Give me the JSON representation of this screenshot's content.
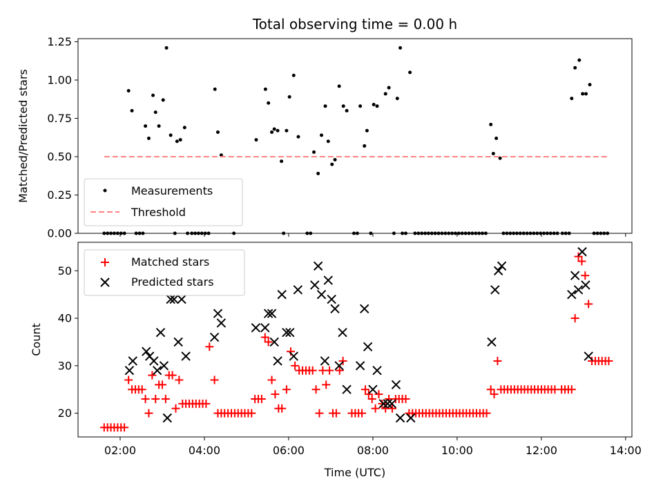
{
  "chart_data": [
    {
      "type": "scatter",
      "title": "Total observing time = 0.00 h",
      "ylabel": "Matched/Predicted stars",
      "xlim": [
        1.0,
        14.15
      ],
      "ylim": [
        0,
        1.27
      ],
      "xticks": [
        2,
        4,
        6,
        8,
        10,
        12,
        14
      ],
      "yticks": [
        0.0,
        0.25,
        0.5,
        0.75,
        1.0,
        1.25
      ],
      "ytick_labels": [
        "0.00",
        "0.25",
        "0.50",
        "0.75",
        "1.00",
        "1.25"
      ],
      "legend": {
        "placement": "lower-left",
        "entries": [
          "Measurements",
          "Threshold"
        ]
      },
      "series": [
        {
          "name": "Measurements",
          "color": "#000000",
          "marker": "dot",
          "x": [
            2.2,
            2.28,
            2.6,
            2.68,
            2.78,
            2.84,
            2.92,
            3.02,
            3.1,
            3.2,
            3.35,
            3.43,
            3.53,
            4.25,
            4.32,
            4.4,
            5.23,
            5.45,
            5.52,
            5.6,
            5.66,
            5.74,
            5.83,
            5.95,
            6.02,
            6.12,
            6.23,
            6.6,
            6.7,
            6.78,
            6.87,
            6.94,
            7.03,
            7.1,
            7.2,
            7.3,
            7.38,
            7.7,
            7.8,
            7.86,
            8.02,
            8.1,
            8.3,
            8.38,
            8.58,
            8.65,
            8.88,
            10.8,
            10.86,
            10.93,
            11.02,
            12.72,
            12.8,
            12.9,
            12.98,
            13.06,
            13.15
          ],
          "y": [
            0.93,
            0.8,
            0.7,
            0.62,
            0.9,
            0.79,
            0.7,
            0.87,
            1.21,
            0.64,
            0.6,
            0.61,
            0.69,
            0.94,
            0.66,
            0.51,
            0.61,
            0.94,
            0.85,
            0.66,
            0.68,
            0.67,
            0.47,
            0.67,
            0.89,
            1.03,
            0.63,
            0.53,
            0.39,
            0.64,
            0.83,
            0.6,
            0.45,
            0.48,
            0.96,
            0.83,
            0.8,
            0.83,
            0.57,
            0.67,
            0.84,
            0.83,
            0.91,
            0.95,
            0.88,
            1.21,
            1.05,
            0.71,
            0.52,
            0.62,
            0.49,
            0.88,
            1.08,
            1.13,
            0.91,
            0.91,
            0.97
          ]
        },
        {
          "name": "Measurements (zero)",
          "color": "#000000",
          "marker": "dot",
          "x": [
            1.62,
            1.7,
            1.78,
            1.86,
            1.94,
            2.02,
            2.1,
            2.38,
            2.46,
            2.54,
            3.3,
            3.6,
            3.7,
            3.78,
            3.86,
            3.94,
            4.02,
            4.1,
            4.7,
            5.88,
            6.44,
            6.52,
            7.55,
            7.63,
            7.95,
            8.5,
            8.7,
            8.78,
            9.0,
            9.08,
            9.16,
            9.24,
            9.32,
            9.4,
            9.48,
            9.56,
            9.64,
            9.72,
            9.8,
            9.88,
            9.96,
            10.04,
            10.12,
            10.2,
            10.28,
            10.36,
            10.44,
            10.52,
            10.6,
            10.68,
            11.1,
            11.18,
            11.26,
            11.34,
            11.42,
            11.5,
            11.58,
            11.66,
            11.74,
            11.82,
            11.9,
            11.98,
            12.06,
            12.14,
            12.22,
            12.3,
            12.38,
            12.5,
            12.58,
            12.66,
            13.25,
            13.33,
            13.41,
            13.49,
            13.57
          ],
          "y": [
            0,
            0,
            0,
            0,
            0,
            0,
            0,
            0,
            0,
            0,
            0,
            0,
            0,
            0,
            0,
            0,
            0,
            0,
            0,
            0,
            0,
            0,
            0,
            0,
            0,
            0,
            0,
            0,
            0,
            0,
            0,
            0,
            0,
            0,
            0,
            0,
            0,
            0,
            0,
            0,
            0,
            0,
            0,
            0,
            0,
            0,
            0,
            0,
            0,
            0,
            0,
            0,
            0,
            0,
            0,
            0,
            0,
            0,
            0,
            0,
            0,
            0,
            0,
            0,
            0,
            0,
            0,
            0,
            0,
            0,
            0,
            0,
            0,
            0,
            0
          ]
        },
        {
          "name": "Threshold",
          "color": "#ff8080",
          "marker": "dashed-line",
          "x": [
            1.62,
            13.57
          ],
          "y": [
            0.5,
            0.5
          ]
        }
      ]
    },
    {
      "type": "scatter",
      "xlabel": "Time (UTC)",
      "ylabel": "Count",
      "xlim": [
        1.0,
        14.15
      ],
      "ylim": [
        15,
        56
      ],
      "xticks": [
        2,
        4,
        6,
        8,
        10,
        12,
        14
      ],
      "xtick_labels": [
        "02:00",
        "04:00",
        "06:00",
        "08:00",
        "10:00",
        "12:00",
        "14:00"
      ],
      "yticks": [
        20,
        30,
        40,
        50
      ],
      "ytick_labels": [
        "20",
        "30",
        "40",
        "50"
      ],
      "legend": {
        "placement": "top-left",
        "entries": [
          "Matched stars",
          "Predicted stars"
        ]
      },
      "series": [
        {
          "name": "Matched stars",
          "color": "#ff0000",
          "marker": "plus",
          "x": [
            1.62,
            1.7,
            1.78,
            1.86,
            1.94,
            2.02,
            2.1,
            2.2,
            2.28,
            2.36,
            2.44,
            2.52,
            2.6,
            2.68,
            2.76,
            2.84,
            2.92,
            3.0,
            3.08,
            3.16,
            3.24,
            3.32,
            3.4,
            3.48,
            3.56,
            3.64,
            3.72,
            3.8,
            3.88,
            3.96,
            4.04,
            4.12,
            4.24,
            4.32,
            4.4,
            4.48,
            4.56,
            4.64,
            4.72,
            4.8,
            4.88,
            4.96,
            5.04,
            5.12,
            5.2,
            5.28,
            5.36,
            5.44,
            5.52,
            5.6,
            5.68,
            5.76,
            5.84,
            5.95,
            6.05,
            6.15,
            6.25,
            6.33,
            6.41,
            6.49,
            6.57,
            6.65,
            6.73,
            6.81,
            6.89,
            6.97,
            7.05,
            7.13,
            7.21,
            7.29,
            7.5,
            7.58,
            7.66,
            7.74,
            7.82,
            7.9,
            7.98,
            8.06,
            8.14,
            8.22,
            8.3,
            8.38,
            8.46,
            8.54,
            8.62,
            8.7,
            8.78,
            8.86,
            8.94,
            9.02,
            9.1,
            9.18,
            9.26,
            9.34,
            9.42,
            9.5,
            9.58,
            9.66,
            9.74,
            9.82,
            9.9,
            9.98,
            10.06,
            10.14,
            10.22,
            10.3,
            10.38,
            10.46,
            10.54,
            10.62,
            10.7,
            10.8,
            10.88,
            10.96,
            11.04,
            11.12,
            11.2,
            11.28,
            11.36,
            11.44,
            11.52,
            11.6,
            11.68,
            11.76,
            11.84,
            11.92,
            12.0,
            12.08,
            12.16,
            12.24,
            12.32,
            12.48,
            12.56,
            12.64,
            12.72,
            12.8,
            12.88,
            12.96,
            13.04,
            13.12,
            13.2,
            13.28,
            13.36,
            13.44,
            13.52,
            13.6
          ],
          "y": [
            17,
            17,
            17,
            17,
            17,
            17,
            17,
            27,
            25,
            25,
            25,
            25,
            23,
            20,
            28,
            23,
            26,
            26,
            23,
            28,
            28,
            21,
            27,
            22,
            22,
            22,
            22,
            22,
            22,
            22,
            22,
            34,
            27,
            20,
            20,
            20,
            20,
            20,
            20,
            20,
            20,
            20,
            20,
            20,
            23,
            23,
            23,
            36,
            35,
            27,
            24,
            21,
            21,
            25,
            33,
            30,
            29,
            29,
            29,
            29,
            29,
            25,
            20,
            29,
            26,
            29,
            20,
            20,
            29,
            31,
            20,
            20,
            20,
            20,
            25,
            24,
            23,
            21,
            24,
            22,
            21,
            23,
            21,
            23,
            23,
            23,
            23,
            20,
            20,
            20,
            20,
            20,
            20,
            20,
            20,
            20,
            20,
            20,
            20,
            20,
            20,
            20,
            20,
            20,
            20,
            20,
            20,
            20,
            20,
            20,
            20,
            25,
            24,
            31,
            25,
            25,
            25,
            25,
            25,
            25,
            25,
            25,
            25,
            25,
            25,
            25,
            25,
            25,
            25,
            25,
            25,
            25,
            25,
            25,
            25,
            40,
            53,
            52,
            49,
            43,
            31,
            31,
            31,
            31,
            31,
            31
          ]
        },
        {
          "name": "Predicted stars",
          "color": "#000000",
          "marker": "cross",
          "x": [
            2.22,
            2.3,
            2.62,
            2.7,
            2.8,
            2.88,
            2.96,
            3.04,
            3.12,
            3.2,
            3.28,
            3.38,
            3.46,
            3.56,
            4.24,
            4.32,
            4.4,
            5.22,
            5.44,
            5.52,
            5.6,
            5.66,
            5.74,
            5.84,
            5.95,
            6.03,
            6.12,
            6.22,
            6.62,
            6.7,
            6.78,
            6.86,
            6.94,
            7.02,
            7.1,
            7.2,
            7.28,
            7.38,
            7.7,
            7.8,
            7.88,
            8.0,
            8.1,
            8.25,
            8.35,
            8.45,
            8.55,
            8.65,
            8.9,
            10.82,
            10.9,
            10.98,
            11.06,
            12.72,
            12.8,
            12.88,
            12.97,
            13.05,
            13.12
          ],
          "y": [
            29,
            31,
            33,
            32,
            31,
            29,
            37,
            30,
            19,
            44,
            44,
            35,
            44,
            32,
            36,
            41,
            39,
            38,
            38,
            41,
            41,
            35,
            31,
            45,
            37,
            37,
            32,
            46,
            47,
            51,
            45,
            31,
            48,
            44,
            42,
            30,
            37,
            25,
            30,
            42,
            34,
            25,
            29,
            22,
            22,
            22,
            26,
            19,
            19,
            35,
            46,
            50,
            51,
            45,
            49,
            46,
            54,
            47,
            32
          ]
        }
      ]
    }
  ]
}
